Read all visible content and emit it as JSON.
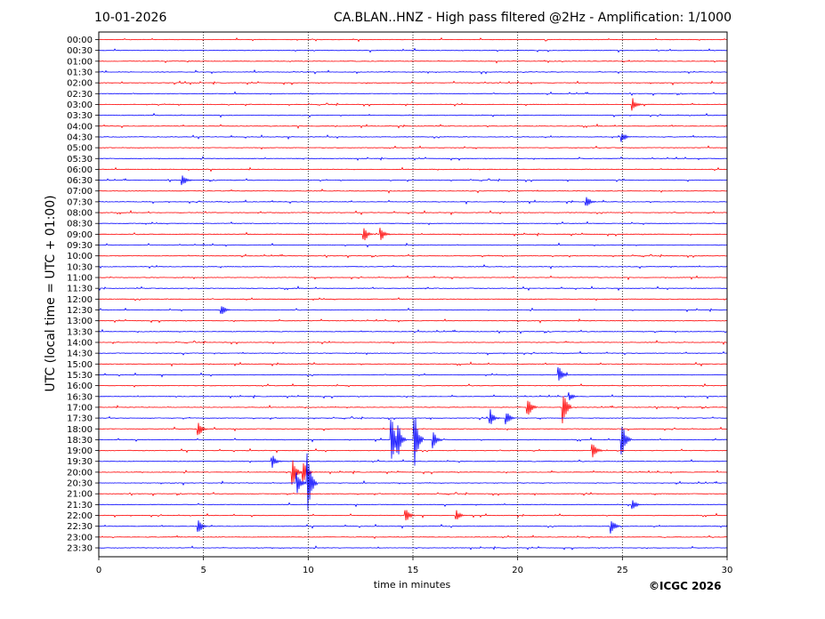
{
  "header": {
    "date": "10-01-2026",
    "title": "CA.BLAN..HNZ - High pass filtered @2Hz - Amplification: 1/1000"
  },
  "footer": {
    "copyright": "©ICGC 2026"
  },
  "chart_data": {
    "type": "seismogram",
    "xlabel": "time in minutes",
    "ylabel": "UTC (local time = UTC + 01:00)",
    "xlim": [
      0,
      30
    ],
    "xticks": [
      0,
      5,
      10,
      15,
      20,
      25,
      30
    ],
    "vertical_gridlines_at": [
      5,
      10,
      15,
      20,
      25
    ],
    "grid": "vertical dotted",
    "colors": {
      "red_trace": "#ff0000",
      "blue_trace": "#0000ff",
      "grid": "#000000"
    },
    "trace_color_order": [
      "red",
      "blue"
    ],
    "rows": [
      "00:00",
      "00:30",
      "01:00",
      "01:30",
      "02:00",
      "02:30",
      "03:00",
      "03:30",
      "04:00",
      "04:30",
      "05:00",
      "05:30",
      "06:00",
      "06:30",
      "07:00",
      "07:30",
      "08:00",
      "08:30",
      "09:00",
      "09:30",
      "10:00",
      "10:30",
      "11:00",
      "11:30",
      "12:00",
      "12:30",
      "13:00",
      "13:30",
      "14:00",
      "14:30",
      "15:00",
      "15:30",
      "16:00",
      "16:30",
      "17:00",
      "17:30",
      "18:00",
      "18:30",
      "19:00",
      "19:30",
      "20:00",
      "20:30",
      "21:00",
      "21:30",
      "22:00",
      "22:30",
      "23:00",
      "23:30"
    ],
    "notable_events": [
      {
        "row": "03:00",
        "minute": 25.5,
        "amplitude": 0.6
      },
      {
        "row": "04:30",
        "minute": 25.0,
        "amplitude": 0.5
      },
      {
        "row": "06:30",
        "minute": 4.0,
        "amplitude": 0.6
      },
      {
        "row": "07:30",
        "minute": 23.3,
        "amplitude": 0.5
      },
      {
        "row": "09:00",
        "minute": 12.7,
        "amplitude": 0.6
      },
      {
        "row": "09:00",
        "minute": 13.5,
        "amplitude": 0.6
      },
      {
        "row": "12:30",
        "minute": 5.9,
        "amplitude": 0.5
      },
      {
        "row": "15:30",
        "minute": 22.0,
        "amplitude": 0.8
      },
      {
        "row": "16:30",
        "minute": 22.5,
        "amplitude": 0.4
      },
      {
        "row": "17:00",
        "minute": 20.5,
        "amplitude": 1.0
      },
      {
        "row": "17:00",
        "minute": 22.2,
        "amplitude": 1.6
      },
      {
        "row": "17:30",
        "minute": 18.7,
        "amplitude": 0.8
      },
      {
        "row": "17:30",
        "minute": 19.5,
        "amplitude": 0.6
      },
      {
        "row": "18:00",
        "minute": 4.8,
        "amplitude": 0.6
      },
      {
        "row": "18:30",
        "minute": 14.0,
        "amplitude": 2.2
      },
      {
        "row": "18:30",
        "minute": 14.3,
        "amplitude": 1.4
      },
      {
        "row": "18:30",
        "minute": 15.1,
        "amplitude": 2.6
      },
      {
        "row": "18:30",
        "minute": 16.0,
        "amplitude": 0.8
      },
      {
        "row": "18:30",
        "minute": 25.0,
        "amplitude": 1.6
      },
      {
        "row": "19:00",
        "minute": 23.6,
        "amplitude": 0.8
      },
      {
        "row": "19:30",
        "minute": 8.3,
        "amplitude": 0.6
      },
      {
        "row": "20:00",
        "minute": 9.3,
        "amplitude": 1.2
      },
      {
        "row": "20:00",
        "minute": 9.8,
        "amplitude": 1.0
      },
      {
        "row": "20:30",
        "minute": 9.5,
        "amplitude": 1.0
      },
      {
        "row": "20:30",
        "minute": 10.0,
        "amplitude": 2.8
      },
      {
        "row": "21:30",
        "minute": 25.5,
        "amplitude": 0.5
      },
      {
        "row": "22:00",
        "minute": 14.7,
        "amplitude": 0.6
      },
      {
        "row": "22:00",
        "minute": 17.1,
        "amplitude": 0.5
      },
      {
        "row": "22:30",
        "minute": 4.8,
        "amplitude": 0.6
      },
      {
        "row": "22:30",
        "minute": 24.5,
        "amplitude": 0.7
      }
    ]
  }
}
